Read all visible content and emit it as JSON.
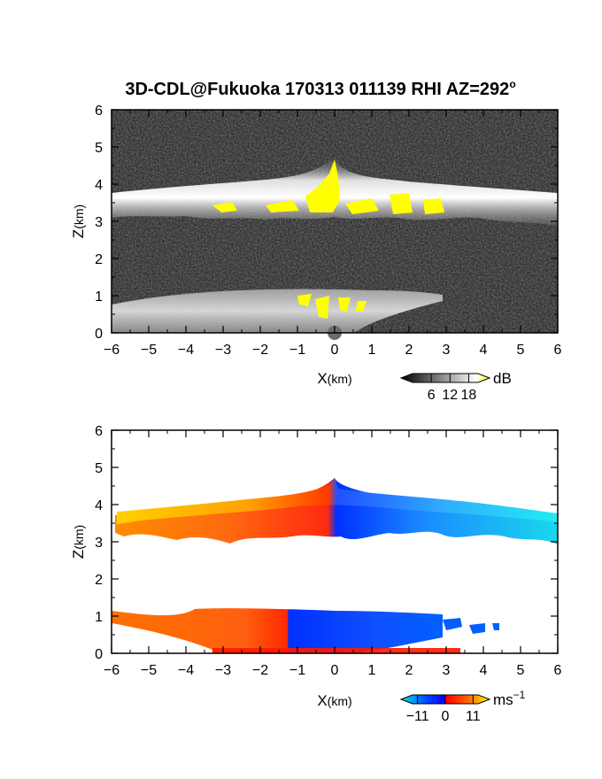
{
  "title": "3D-CDL@Fukuoka 170313 011139 RHI AZ=292",
  "title_sup": "o",
  "chart_data": [
    {
      "type": "heatmap",
      "panel": "backscatter",
      "xlabel": "X",
      "xlabel_unit": "(km)",
      "ylabel": "Z",
      "ylabel_unit": "(km)",
      "xlim": [
        -6,
        6
      ],
      "ylim": [
        0,
        6
      ],
      "x_ticks": [
        -6,
        -5,
        -4,
        -3,
        -2,
        -1,
        0,
        1,
        2,
        3,
        4,
        5,
        6
      ],
      "y_ticks": [
        0,
        1,
        2,
        3,
        4,
        5,
        6
      ],
      "colorbar": {
        "label": "dB",
        "ticks": [
          6,
          12,
          18
        ],
        "range": [
          0,
          21
        ],
        "colors": [
          "#000000",
          "#ffffff",
          "#ffff00"
        ]
      },
      "features": [
        {
          "name": "upper echo layer",
          "x": [
            -6,
            6
          ],
          "z": [
            2.9,
            3.9
          ],
          "peak_z": 4.7,
          "peak_x": 0.1,
          "saturated_z": [
            3.2,
            4.3
          ]
        },
        {
          "name": "lower echo layer",
          "x": [
            -6,
            3.0
          ],
          "z": [
            0,
            1.05
          ],
          "saturated_z": [
            0.3,
            1.0
          ]
        }
      ]
    },
    {
      "type": "heatmap",
      "panel": "doppler velocity",
      "xlabel": "X",
      "xlabel_unit": "(km)",
      "ylabel": "Z",
      "ylabel_unit": "(km)",
      "xlim": [
        -6,
        6
      ],
      "ylim": [
        0,
        6
      ],
      "x_ticks": [
        -6,
        -5,
        -4,
        -3,
        -2,
        -1,
        0,
        1,
        2,
        3,
        4,
        5,
        6
      ],
      "y_ticks": [
        0,
        1,
        2,
        3,
        4,
        5,
        6
      ],
      "colorbar": {
        "label": "ms",
        "label_sup": "−1",
        "ticks": [
          -11,
          0,
          11
        ],
        "tick_labels": [
          "−11",
          "0",
          "11"
        ],
        "range": [
          -13,
          13
        ],
        "colors": [
          "#00e5e5",
          "#0040ff",
          "#0000ff",
          "#ff0000",
          "#ff6000",
          "#ffff00"
        ]
      },
      "features": [
        {
          "name": "upper velocity layer",
          "x": [
            -5.9,
            6
          ],
          "z": [
            2.9,
            4.0
          ],
          "peak_z": 4.75,
          "velocity_left": 11,
          "velocity_right": -11
        },
        {
          "name": "lower velocity layer",
          "x": [
            -6,
            4.6
          ],
          "z": [
            0,
            1.15
          ],
          "velocity_left": 8,
          "velocity_right": -9
        }
      ]
    }
  ]
}
